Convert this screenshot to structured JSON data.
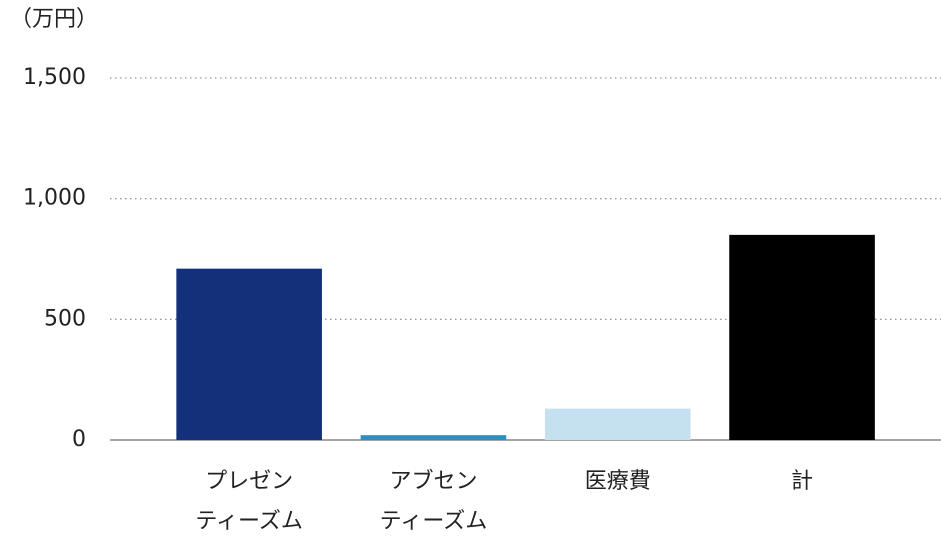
{
  "chart_data": {
    "type": "bar",
    "unit_label": "（万円）",
    "categories": [
      [
        "プレゼン",
        "ティーズム"
      ],
      [
        "アブセン",
        "ティーズム"
      ],
      [
        "医療費"
      ],
      [
        "計"
      ]
    ],
    "values": [
      710,
      20,
      130,
      850
    ],
    "colors": [
      "#14307a",
      "#2b8fc3",
      "#c5e0ee",
      "#000000"
    ],
    "ylim": [
      0,
      1500
    ],
    "yticks": [
      0,
      500,
      {
        "value": 1000,
        "label": "1,000"
      },
      {
        "value": 1500,
        "label": "1,500"
      }
    ],
    "grid": true
  }
}
